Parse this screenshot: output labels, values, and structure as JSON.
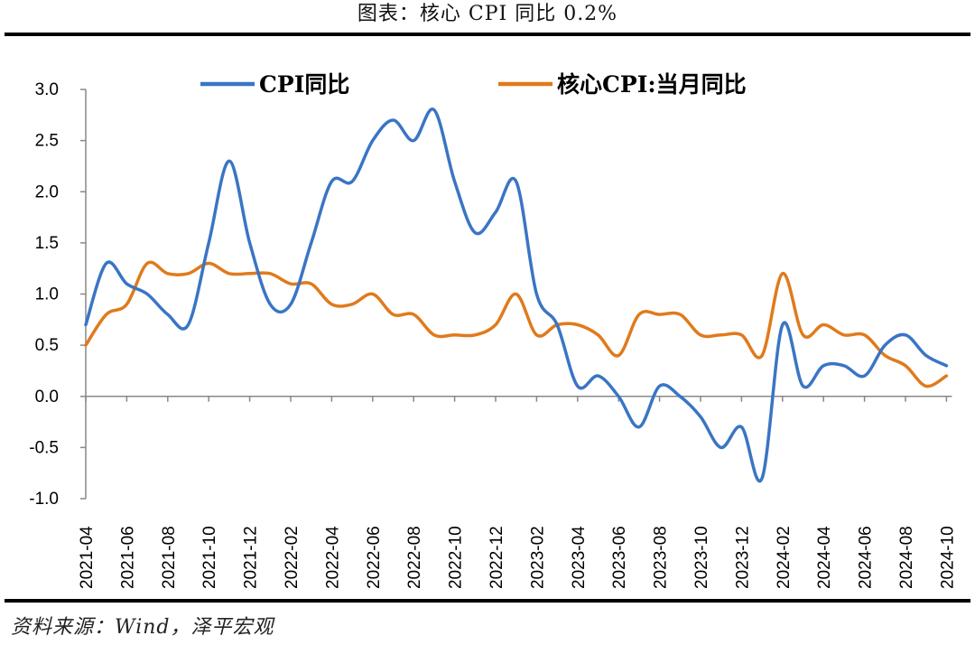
{
  "figure": {
    "title": "图表：核心 CPI 同比 0.2%",
    "source": "资料来源：Wind，泽平宏观"
  },
  "chart_data": {
    "type": "line",
    "title": "",
    "xlabel": "",
    "ylabel": "",
    "ylim": [
      -1.0,
      3.0
    ],
    "yticks": [
      "3.0",
      "2.5",
      "2.0",
      "1.5",
      "1.0",
      "0.5",
      "0.0",
      "-0.5",
      "-1.0"
    ],
    "ytick_values": [
      3.0,
      2.5,
      2.0,
      1.5,
      1.0,
      0.5,
      0.0,
      -0.5,
      -1.0
    ],
    "grid": false,
    "legend_position": "top",
    "x": [
      "2021-04",
      "2021-05",
      "2021-06",
      "2021-07",
      "2021-08",
      "2021-09",
      "2021-10",
      "2021-11",
      "2021-12",
      "2022-01",
      "2022-02",
      "2022-03",
      "2022-04",
      "2022-05",
      "2022-06",
      "2022-07",
      "2022-08",
      "2022-09",
      "2022-10",
      "2022-11",
      "2022-12",
      "2023-01",
      "2023-02",
      "2023-03",
      "2023-04",
      "2023-05",
      "2023-06",
      "2023-07",
      "2023-08",
      "2023-09",
      "2023-10",
      "2023-11",
      "2023-12",
      "2024-01",
      "2024-02",
      "2024-03",
      "2024-04",
      "2024-05",
      "2024-06",
      "2024-07",
      "2024-08",
      "2024-09",
      "2024-10"
    ],
    "x_tick_labels": [
      "2021-04",
      "2021-06",
      "2021-08",
      "2021-10",
      "2021-12",
      "2022-02",
      "2022-04",
      "2022-06",
      "2022-08",
      "2022-10",
      "2022-12",
      "2023-02",
      "2023-04",
      "2023-06",
      "2023-08",
      "2023-10",
      "2023-12",
      "2024-02",
      "2024-04",
      "2024-06",
      "2024-08",
      "2024-10"
    ],
    "series": [
      {
        "name": "CPI同比",
        "color": "#3a75c4",
        "values": [
          0.7,
          1.3,
          1.1,
          1.0,
          0.8,
          0.7,
          1.5,
          2.3,
          1.5,
          0.9,
          0.9,
          1.5,
          2.1,
          2.1,
          2.5,
          2.7,
          2.5,
          2.8,
          2.1,
          1.6,
          1.8,
          2.1,
          1.0,
          0.7,
          0.1,
          0.2,
          0.0,
          -0.3,
          0.1,
          0.0,
          -0.2,
          -0.5,
          -0.3,
          -0.8,
          0.7,
          0.1,
          0.3,
          0.3,
          0.2,
          0.5,
          0.6,
          0.4,
          0.3
        ]
      },
      {
        "name": "核心CPI:当月同比",
        "color": "#e07a1c",
        "values": [
          0.5,
          0.8,
          0.9,
          1.3,
          1.2,
          1.2,
          1.3,
          1.2,
          1.2,
          1.2,
          1.1,
          1.1,
          0.9,
          0.9,
          1.0,
          0.8,
          0.8,
          0.6,
          0.6,
          0.6,
          0.7,
          1.0,
          0.6,
          0.7,
          0.7,
          0.6,
          0.4,
          0.8,
          0.8,
          0.8,
          0.6,
          0.6,
          0.6,
          0.4,
          1.2,
          0.6,
          0.7,
          0.6,
          0.6,
          0.4,
          0.3,
          0.1,
          0.2
        ]
      }
    ]
  }
}
